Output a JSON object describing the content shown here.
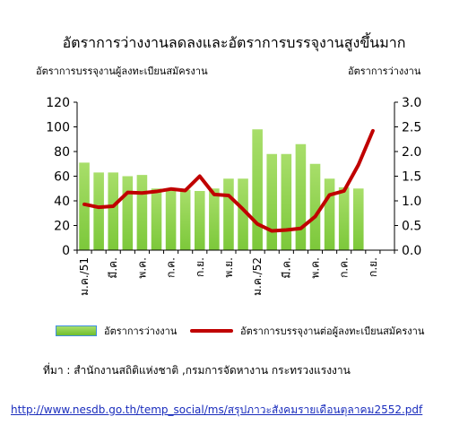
{
  "title": "อัตราการว่างงานลดลงและอัตราการบรรจุงานสูงขึ้นมาก",
  "left_axis_label": "อัตราการบรรจุงานผู้ลงทะเบียนสมัครงาน",
  "right_axis_label": "อัตราการว่างงาน",
  "source_note": "ที่มา : สำนักงานสถิติแห่งชาติ ,กรมการจัดหางาน กระทรวงแรงงาน",
  "url": "http://www.nesdb.go.th/temp_social/ms/สรุปภาวะสังคมรายเดือนตุลาคม2552.pdf",
  "chart_data": {
    "type": "bar+line",
    "x_tick_labels": [
      "ม.ค./51",
      "มี.ค.",
      "พ.ค.",
      "ก.ค.",
      "ก.ย.",
      "พ.ย.",
      "ม.ค./52",
      "มี.ค.",
      "พ.ค.",
      "ก.ค.",
      "ก.ย."
    ],
    "n_points": 22,
    "left_axis": {
      "ylim": [
        0,
        120
      ],
      "ticks": [
        "0",
        "20",
        "40",
        "60",
        "80",
        "100",
        "120"
      ]
    },
    "right_axis": {
      "ylim": [
        0.0,
        3.0
      ],
      "ticks": [
        "0.0",
        "0.5",
        "1.0",
        "1.5",
        "2.0",
        "2.5",
        "3.0"
      ]
    },
    "series": [
      {
        "name": "อัตราการว่างงาน",
        "type": "bar",
        "axis": "left",
        "color": "#8fd24c",
        "values": [
          71,
          63,
          63,
          60,
          61,
          50,
          50,
          49,
          48,
          50,
          58,
          58,
          98,
          78,
          78,
          86,
          70,
          58,
          51,
          50,
          null,
          null
        ]
      },
      {
        "name": "อัตราการบรรจุงานต่อผู้ลงทะเบียนสมัครงาน",
        "type": "line",
        "axis": "right",
        "color": "#c00000",
        "values": [
          0.93,
          0.87,
          0.89,
          1.17,
          1.16,
          1.19,
          1.24,
          1.21,
          1.5,
          1.13,
          1.11,
          0.83,
          0.53,
          0.39,
          0.41,
          0.44,
          0.68,
          1.12,
          1.2,
          1.73,
          2.42,
          null
        ]
      }
    ],
    "grid": false,
    "legend_position": "bottom"
  }
}
